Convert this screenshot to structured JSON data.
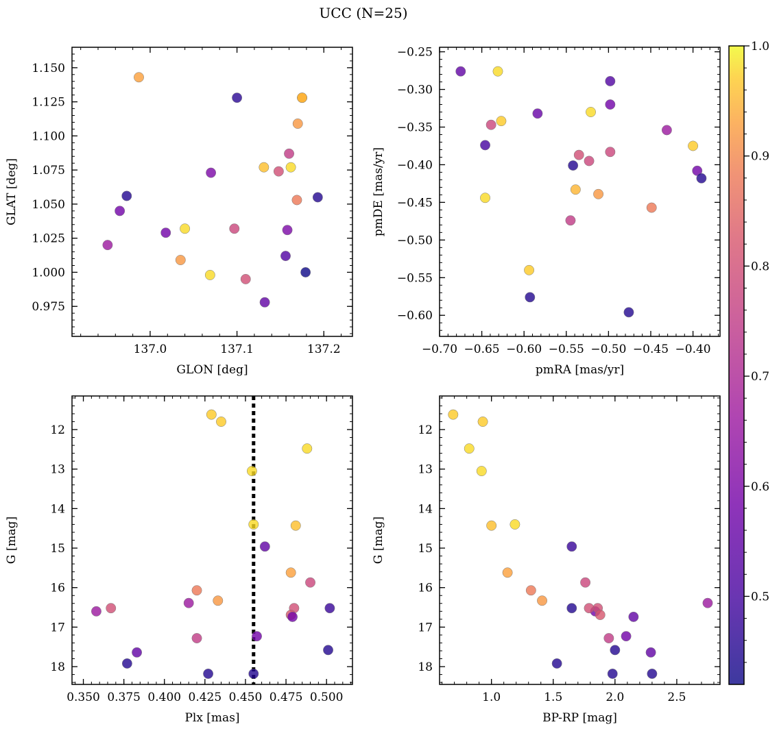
{
  "figure": {
    "title": "UCC (N=25)"
  },
  "colorbar": {
    "min": 0.42,
    "max": 1.0,
    "ticks": [
      0.5,
      0.6,
      0.7,
      0.8,
      0.9,
      1.0
    ],
    "tick_labels": [
      "0.5",
      "0.6",
      "0.7",
      "0.8",
      "0.9",
      "1.0"
    ],
    "colormap": "plasma"
  },
  "chart_data": [
    {
      "type": "scatter",
      "id": "glon-glat",
      "xlabel": "GLON [deg]",
      "ylabel": "GLAT [deg]",
      "xlim": [
        136.91,
        137.233
      ],
      "ylim": [
        0.953,
        1.165
      ],
      "xticks": [
        137.0,
        137.1,
        137.2
      ],
      "xtick_labels": [
        "137.0",
        "137.1",
        "137.2"
      ],
      "yticks": [
        0.975,
        1.0,
        1.025,
        1.05,
        1.075,
        1.1,
        1.125,
        1.15
      ],
      "ytick_labels": [
        "0.975",
        "1.000",
        "1.025",
        "1.050",
        "1.075",
        "1.100",
        "1.125",
        "1.150"
      ],
      "x": [
        136.987,
        137.1,
        137.175,
        137.17,
        137.16,
        137.131,
        137.162,
        137.148,
        137.07,
        136.973,
        137.193,
        137.169,
        136.965,
        137.04,
        137.018,
        137.097,
        137.158,
        136.951,
        137.156,
        137.035,
        137.069,
        137.179,
        137.11,
        137.132,
        137.175
      ],
      "y": [
        1.143,
        1.128,
        1.128,
        1.109,
        1.087,
        1.077,
        1.077,
        1.074,
        1.073,
        1.056,
        1.055,
        1.053,
        1.045,
        1.032,
        1.029,
        1.032,
        1.031,
        1.02,
        1.012,
        1.009,
        0.998,
        1.0,
        0.995,
        0.978,
        1.128
      ],
      "color": [
        0.93,
        0.46,
        0.93,
        0.92,
        0.75,
        0.96,
        0.98,
        0.8,
        0.6,
        0.45,
        0.45,
        0.88,
        0.58,
        0.98,
        0.58,
        0.78,
        0.6,
        0.66,
        0.52,
        0.92,
        0.98,
        0.42,
        0.8,
        0.55,
        0.95
      ]
    },
    {
      "type": "scatter",
      "id": "pmra-pmde",
      "xlabel": "pmRA [mas/yr]",
      "ylabel": "pmDE [mas/yr]",
      "xlim": [
        -0.7,
        -0.368
      ],
      "ylim": [
        -0.628,
        -0.244
      ],
      "xticks": [
        -0.7,
        -0.65,
        -0.6,
        -0.55,
        -0.5,
        -0.45,
        -0.4
      ],
      "xtick_labels": [
        "−0.70",
        "−0.65",
        "−0.60",
        "−0.55",
        "−0.50",
        "−0.45",
        "−0.40"
      ],
      "yticks": [
        -0.6,
        -0.55,
        -0.5,
        -0.45,
        -0.4,
        -0.35,
        -0.3,
        -0.25
      ],
      "ytick_labels": [
        "−0.60",
        "−0.55",
        "−0.50",
        "−0.45",
        "−0.40",
        "−0.35",
        "−0.30",
        "−0.25"
      ],
      "x": [
        -0.675,
        -0.631,
        -0.498,
        -0.498,
        -0.584,
        -0.521,
        -0.627,
        -0.639,
        -0.431,
        -0.646,
        -0.4,
        -0.535,
        -0.498,
        -0.523,
        -0.542,
        -0.395,
        -0.39,
        -0.539,
        -0.512,
        -0.646,
        -0.449,
        -0.545,
        -0.594,
        -0.593,
        -0.476
      ],
      "y": [
        -0.276,
        -0.276,
        -0.289,
        -0.32,
        -0.332,
        -0.33,
        -0.342,
        -0.347,
        -0.354,
        -0.374,
        -0.375,
        -0.387,
        -0.383,
        -0.395,
        -0.401,
        -0.408,
        -0.418,
        -0.433,
        -0.439,
        -0.444,
        -0.457,
        -0.474,
        -0.54,
        -0.576,
        -0.596
      ],
      "color": [
        0.55,
        0.98,
        0.52,
        0.58,
        0.56,
        0.98,
        0.97,
        0.78,
        0.66,
        0.5,
        0.97,
        0.8,
        0.78,
        0.78,
        0.45,
        0.58,
        0.45,
        0.95,
        0.92,
        0.98,
        0.88,
        0.75,
        0.97,
        0.45,
        0.45
      ]
    },
    {
      "type": "scatter",
      "id": "plx-g",
      "xlabel": "Plx [mas]",
      "ylabel": "G [mag]",
      "xlim": [
        0.343,
        0.516
      ],
      "ylim": [
        18.45,
        11.15
      ],
      "yinverted": true,
      "xticks": [
        0.35,
        0.375,
        0.4,
        0.425,
        0.45,
        0.475,
        0.5
      ],
      "xtick_labels": [
        "0.350",
        "0.375",
        "0.400",
        "0.425",
        "0.450",
        "0.475",
        "0.500"
      ],
      "yticks": [
        12,
        13,
        14,
        15,
        16,
        17,
        18
      ],
      "ytick_labels": [
        "12",
        "13",
        "14",
        "15",
        "16",
        "17",
        "18"
      ],
      "vline": 0.455,
      "x": [
        0.429,
        0.435,
        0.488,
        0.454,
        0.455,
        0.481,
        0.462,
        0.478,
        0.49,
        0.42,
        0.433,
        0.415,
        0.502,
        0.358,
        0.367,
        0.48,
        0.478,
        0.479,
        0.457,
        0.42,
        0.383,
        0.377,
        0.427,
        0.455,
        0.501
      ],
      "y": [
        11.62,
        11.8,
        12.48,
        13.05,
        14.4,
        14.43,
        14.96,
        15.62,
        15.87,
        16.07,
        16.33,
        16.39,
        16.52,
        16.6,
        16.52,
        16.52,
        16.69,
        16.74,
        17.23,
        17.28,
        17.64,
        17.92,
        18.18,
        18.18,
        17.58
      ],
      "color": [
        0.97,
        0.97,
        0.98,
        0.98,
        0.98,
        0.96,
        0.55,
        0.93,
        0.78,
        0.88,
        0.92,
        0.66,
        0.48,
        0.66,
        0.8,
        0.8,
        0.82,
        0.58,
        0.58,
        0.75,
        0.55,
        0.45,
        0.45,
        0.45,
        0.45
      ]
    },
    {
      "type": "scatter",
      "id": "bprp-g",
      "xlabel": "BP-RP [mag]",
      "ylabel": "G [mag]",
      "xlim": [
        0.58,
        2.85
      ],
      "ylim": [
        18.45,
        11.15
      ],
      "yinverted": true,
      "xticks": [
        1.0,
        1.5,
        2.0,
        2.5
      ],
      "xtick_labels": [
        "1.0",
        "1.5",
        "2.0",
        "2.5"
      ],
      "yticks": [
        12,
        13,
        14,
        15,
        16,
        17,
        18
      ],
      "ytick_labels": [
        "12",
        "13",
        "14",
        "15",
        "16",
        "17",
        "18"
      ],
      "x": [
        0.69,
        0.93,
        0.82,
        0.92,
        1.0,
        1.19,
        1.65,
        1.13,
        1.76,
        1.32,
        1.41,
        2.75,
        1.65,
        1.84,
        1.86,
        1.79,
        1.88,
        2.15,
        2.09,
        1.95,
        2.29,
        1.53,
        1.98,
        2.3,
        2.0
      ],
      "y": [
        11.62,
        11.8,
        12.48,
        13.05,
        14.43,
        14.4,
        14.96,
        15.62,
        15.87,
        16.07,
        16.33,
        16.39,
        16.52,
        16.6,
        16.52,
        16.52,
        16.69,
        16.74,
        17.23,
        17.28,
        17.64,
        17.92,
        18.18,
        18.18,
        17.58
      ],
      "color": [
        0.97,
        0.97,
        0.98,
        0.98,
        0.96,
        0.98,
        0.48,
        0.93,
        0.78,
        0.88,
        0.92,
        0.66,
        0.45,
        0.58,
        0.8,
        0.8,
        0.82,
        0.55,
        0.58,
        0.75,
        0.55,
        0.45,
        0.45,
        0.45,
        0.45
      ]
    }
  ]
}
